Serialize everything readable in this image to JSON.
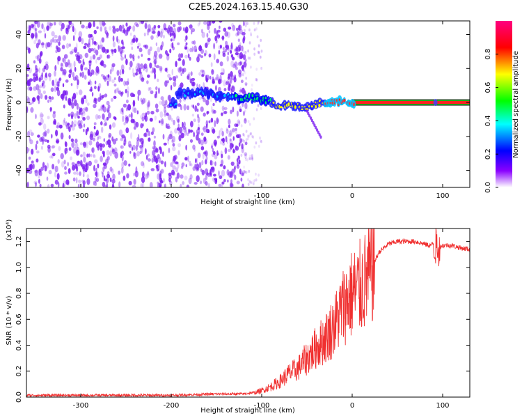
{
  "title": "C2E5.2024.163.15.40.G30",
  "colors": {
    "snr_line": "#f03030",
    "band_red": "#ff2020",
    "band_green": "#20c020",
    "speckle": "#7a1cf0"
  },
  "chart_data": [
    {
      "type": "heatmap",
      "title": "C2E5.2024.163.15.40.G30",
      "xlabel": "Height of straight line (km)",
      "ylabel": "Frequency (Hz)",
      "xlim": [
        -360,
        130
      ],
      "ylim": [
        -50,
        48
      ],
      "xticks": [
        "-300",
        "-200",
        "-100",
        "0",
        "100"
      ],
      "yticks": [
        "-40",
        "-20",
        "0",
        "20",
        "40"
      ],
      "colorbar": {
        "label": "Normalized spectral amplitude",
        "range": [
          0.0,
          1.0
        ],
        "ticks": [
          "0.0",
          "0.2",
          "0.4",
          "0.6",
          "0.8"
        ],
        "colormap": [
          "#ffffff",
          "#8a00ff",
          "#0000ff",
          "#00ffff",
          "#00ff00",
          "#ffff00",
          "#ff0000",
          "#ff0080"
        ]
      },
      "signal_track": {
        "x": [
          -195,
          -170,
          -150,
          -125,
          -110,
          -95,
          -80,
          -65,
          -50,
          -40,
          -30,
          -15,
          0,
          130
        ],
        "frequency": [
          5,
          6,
          4,
          3,
          3,
          1,
          -2,
          -2,
          -3,
          -1,
          0,
          0,
          0,
          0
        ]
      },
      "noise_region_x": [
        -360,
        -125
      ],
      "steady_band": {
        "x": [
          0,
          130
        ],
        "frequency": 0
      }
    },
    {
      "type": "line",
      "xlabel": "Height of straight line (km)",
      "ylabel": "SNR (10 * v/v)",
      "yscale_note": "(x10⁴)",
      "xlim": [
        -360,
        130
      ],
      "ylim": [
        0.0,
        1.3
      ],
      "xticks": [
        "-300",
        "-200",
        "-100",
        "0",
        "100"
      ],
      "yticks": [
        "0.0",
        "0.2",
        "0.4",
        "0.6",
        "0.8",
        "1.0",
        "1.2"
      ],
      "series": [
        {
          "x": [
            -360,
            -300,
            -250,
            -200,
            -150,
            -120,
            -110,
            -100,
            -90,
            -80,
            -70,
            -60,
            -50,
            -40,
            -30,
            -20,
            -10,
            0,
            10,
            20,
            25,
            30,
            40,
            50,
            60,
            70,
            80,
            85,
            90,
            95,
            100,
            110,
            120,
            130
          ],
          "values": [
            0.01,
            0.01,
            0.01,
            0.01,
            0.02,
            0.02,
            0.03,
            0.05,
            0.08,
            0.12,
            0.18,
            0.22,
            0.3,
            0.38,
            0.45,
            0.55,
            0.7,
            0.8,
            0.85,
            0.95,
            1.05,
            1.12,
            1.18,
            1.2,
            1.2,
            1.2,
            1.18,
            1.17,
            1.18,
            1.15,
            1.17,
            1.17,
            1.15,
            1.14
          ]
        }
      ]
    }
  ]
}
